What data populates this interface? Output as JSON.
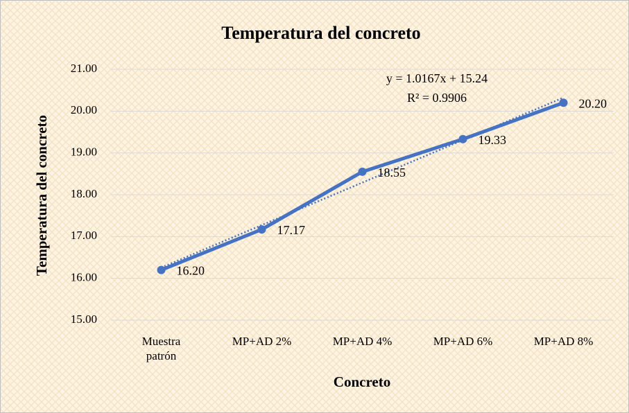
{
  "chart_data": {
    "type": "line",
    "title": "Temperatura  del concreto",
    "x_label": "Concreto",
    "y_label": "Temperatura  del concreto",
    "categories": [
      "Muestra patrón",
      "MP+AD 2%",
      "MP+AD 4%",
      "MP+AD 6%",
      "MP+AD 8%"
    ],
    "series": [
      {
        "name": "Temperatura del concreto",
        "color": "#4472c4",
        "values": [
          16.2,
          17.17,
          18.55,
          19.33,
          20.2
        ],
        "value_labels": [
          "16.20",
          "17.17",
          "18.55",
          "19.33",
          "20.20"
        ]
      }
    ],
    "trendline": {
      "equation": "y = 1.0167x + 15.24",
      "r_squared": "R² = 0.9906",
      "slope": 1.0167,
      "intercept": 15.24
    },
    "ylim": [
      15,
      21
    ],
    "yticks": [
      {
        "value": 15,
        "label": "15.00"
      },
      {
        "value": 16,
        "label": "16.00"
      },
      {
        "value": 17,
        "label": "17.00"
      },
      {
        "value": 18,
        "label": "18.00"
      },
      {
        "value": 19,
        "label": "19.00"
      },
      {
        "value": 20,
        "label": "20.00"
      },
      {
        "value": 21,
        "label": "21.00"
      }
    ],
    "grid": true
  }
}
